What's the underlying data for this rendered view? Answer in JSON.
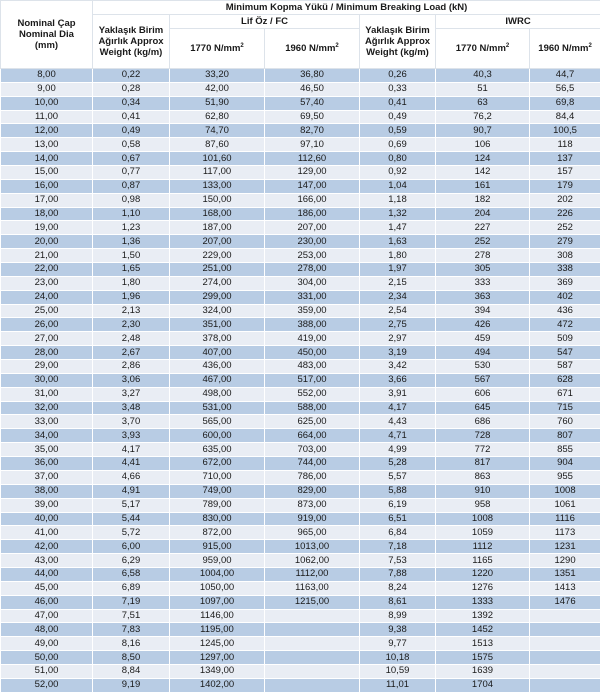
{
  "header": {
    "diameter": "Nominal Çap Nominal Dia (mm)",
    "breaking_load": "Minimum Kopma Yükü / Minimum Breaking Load (kN)",
    "weight_fc": "Yaklaşık Birim Ağırlık Approx Weight (kg/m)",
    "fc_group": "Lif Öz / FC",
    "weight_iwrc": "Yaklaşık Birim Ağırlık Approx Weight (kg/m)",
    "iwrc_group": "IWRC",
    "grade_1770": "1770 N/mm",
    "grade_1960": "1960 N/mm",
    "sup": "2"
  },
  "colors": {
    "row_dark": "#b8cce4",
    "row_light": "#e9edf4"
  },
  "rows": [
    [
      "8,00",
      "0,22",
      "33,20",
      "36,80",
      "0,26",
      "40,3",
      "44,7"
    ],
    [
      "9,00",
      "0,28",
      "42,00",
      "46,50",
      "0,33",
      "51",
      "56,5"
    ],
    [
      "10,00",
      "0,34",
      "51,90",
      "57,40",
      "0,41",
      "63",
      "69,8"
    ],
    [
      "11,00",
      "0,41",
      "62,80",
      "69,50",
      "0,49",
      "76,2",
      "84,4"
    ],
    [
      "12,00",
      "0,49",
      "74,70",
      "82,70",
      "0,59",
      "90,7",
      "100,5"
    ],
    [
      "13,00",
      "0,58",
      "87,60",
      "97,10",
      "0,69",
      "106",
      "118"
    ],
    [
      "14,00",
      "0,67",
      "101,60",
      "112,60",
      "0,80",
      "124",
      "137"
    ],
    [
      "15,00",
      "0,77",
      "117,00",
      "129,00",
      "0,92",
      "142",
      "157"
    ],
    [
      "16,00",
      "0,87",
      "133,00",
      "147,00",
      "1,04",
      "161",
      "179"
    ],
    [
      "17,00",
      "0,98",
      "150,00",
      "166,00",
      "1,18",
      "182",
      "202"
    ],
    [
      "18,00",
      "1,10",
      "168,00",
      "186,00",
      "1,32",
      "204",
      "226"
    ],
    [
      "19,00",
      "1,23",
      "187,00",
      "207,00",
      "1,47",
      "227",
      "252"
    ],
    [
      "20,00",
      "1,36",
      "207,00",
      "230,00",
      "1,63",
      "252",
      "279"
    ],
    [
      "21,00",
      "1,50",
      "229,00",
      "253,00",
      "1,80",
      "278",
      "308"
    ],
    [
      "22,00",
      "1,65",
      "251,00",
      "278,00",
      "1,97",
      "305",
      "338"
    ],
    [
      "23,00",
      "1,80",
      "274,00",
      "304,00",
      "2,15",
      "333",
      "369"
    ],
    [
      "24,00",
      "1,96",
      "299,00",
      "331,00",
      "2,34",
      "363",
      "402"
    ],
    [
      "25,00",
      "2,13",
      "324,00",
      "359,00",
      "2,54",
      "394",
      "436"
    ],
    [
      "26,00",
      "2,30",
      "351,00",
      "388,00",
      "2,75",
      "426",
      "472"
    ],
    [
      "27,00",
      "2,48",
      "378,00",
      "419,00",
      "2,97",
      "459",
      "509"
    ],
    [
      "28,00",
      "2,67",
      "407,00",
      "450,00",
      "3,19",
      "494",
      "547"
    ],
    [
      "29,00",
      "2,86",
      "436,00",
      "483,00",
      "3,42",
      "530",
      "587"
    ],
    [
      "30,00",
      "3,06",
      "467,00",
      "517,00",
      "3,66",
      "567",
      "628"
    ],
    [
      "31,00",
      "3,27",
      "498,00",
      "552,00",
      "3,91",
      "606",
      "671"
    ],
    [
      "32,00",
      "3,48",
      "531,00",
      "588,00",
      "4,17",
      "645",
      "715"
    ],
    [
      "33,00",
      "3,70",
      "565,00",
      "625,00",
      "4,43",
      "686",
      "760"
    ],
    [
      "34,00",
      "3,93",
      "600,00",
      "664,00",
      "4,71",
      "728",
      "807"
    ],
    [
      "35,00",
      "4,17",
      "635,00",
      "703,00",
      "4,99",
      "772",
      "855"
    ],
    [
      "36,00",
      "4,41",
      "672,00",
      "744,00",
      "5,28",
      "817",
      "904"
    ],
    [
      "37,00",
      "4,66",
      "710,00",
      "786,00",
      "5,57",
      "863",
      "955"
    ],
    [
      "38,00",
      "4,91",
      "749,00",
      "829,00",
      "5,88",
      "910",
      "1008"
    ],
    [
      "39,00",
      "5,17",
      "789,00",
      "873,00",
      "6,19",
      "958",
      "1061"
    ],
    [
      "40,00",
      "5,44",
      "830,00",
      "919,00",
      "6,51",
      "1008",
      "1116"
    ],
    [
      "41,00",
      "5,72",
      "872,00",
      "965,00",
      "6,84",
      "1059",
      "1173"
    ],
    [
      "42,00",
      "6,00",
      "915,00",
      "1013,00",
      "7,18",
      "1112",
      "1231"
    ],
    [
      "43,00",
      "6,29",
      "959,00",
      "1062,00",
      "7,53",
      "1165",
      "1290"
    ],
    [
      "44,00",
      "6,58",
      "1004,00",
      "1112,00",
      "7,88",
      "1220",
      "1351"
    ],
    [
      "45,00",
      "6,89",
      "1050,00",
      "1163,00",
      "8,24",
      "1276",
      "1413"
    ],
    [
      "46,00",
      "7,19",
      "1097,00",
      "1215,00",
      "8,61",
      "1333",
      "1476"
    ],
    [
      "47,00",
      "7,51",
      "1146,00",
      "",
      "8,99",
      "1392",
      ""
    ],
    [
      "48,00",
      "7,83",
      "1195,00",
      "",
      "9,38",
      "1452",
      ""
    ],
    [
      "49,00",
      "8,16",
      "1245,00",
      "",
      "9,77",
      "1513",
      ""
    ],
    [
      "50,00",
      "8,50",
      "1297,00",
      "",
      "10,18",
      "1575",
      ""
    ],
    [
      "51,00",
      "8,84",
      "1349,00",
      "",
      "10,59",
      "1639",
      ""
    ],
    [
      "52,00",
      "9,19",
      "1402,00",
      "",
      "11,01",
      "1704",
      ""
    ]
  ]
}
